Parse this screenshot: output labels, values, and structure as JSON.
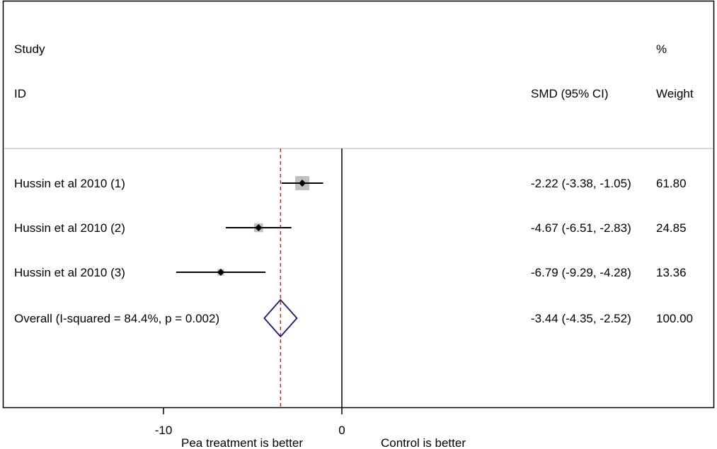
{
  "chart_data": {
    "type": "forest",
    "header": {
      "study_line1": "Study",
      "study_line2": "ID",
      "effect_label": "SMD (95% CI)",
      "weight_line1": "%",
      "weight_line2": "Weight"
    },
    "studies": [
      {
        "label": "Hussin et al 2010 (1)",
        "smd": -2.22,
        "ci_low": -3.38,
        "ci_high": -1.05,
        "ci_text": "-2.22 (-3.38, -1.05)",
        "weight": 61.8,
        "weight_text": "61.80"
      },
      {
        "label": "Hussin et al 2010 (2)",
        "smd": -4.67,
        "ci_low": -6.51,
        "ci_high": -2.83,
        "ci_text": "-4.67 (-6.51, -2.83)",
        "weight": 24.85,
        "weight_text": "24.85"
      },
      {
        "label": "Hussin et al 2010 (3)",
        "smd": -6.79,
        "ci_low": -9.29,
        "ci_high": -4.28,
        "ci_text": "-6.79 (-9.29, -4.28)",
        "weight": 13.36,
        "weight_text": "13.36"
      }
    ],
    "overall": {
      "label": "Overall  (I-squared = 84.4%, p = 0.002)",
      "smd": -3.44,
      "ci_low": -4.35,
      "ci_high": -2.52,
      "ci_text": "-3.44 (-4.35, -2.52)",
      "weight_text": "100.00"
    },
    "x_ticks": [
      {
        "value": -10,
        "label": "-10"
      },
      {
        "value": 0,
        "label": "0"
      }
    ],
    "null_line": 0,
    "direction_labels": {
      "left": "Pea treatment is better",
      "right": "Control is better"
    },
    "colors": {
      "box": "#c0c0c0",
      "point": "#000000",
      "diamond": "#1a1a66",
      "overall_line": "#aa2222",
      "divider": "#cccccc"
    }
  }
}
